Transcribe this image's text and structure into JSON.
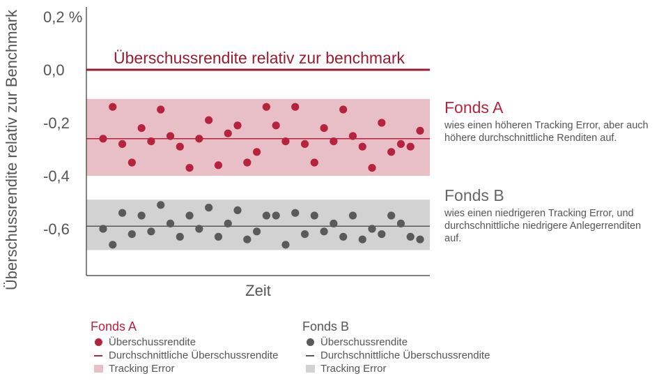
{
  "colors": {
    "fonds_a": "#b5233f",
    "fonds_a_band": "#e8bec7",
    "fonds_b": "#5a5a5a",
    "fonds_b_band": "#d2d2d2",
    "benchmark": "#9b1b30",
    "axis": "#333333"
  },
  "chart_data": {
    "type": "scatter",
    "ylabel": "Überschussrendite relativ zur Benchmark",
    "xlabel": "Zeit",
    "ylim": [
      -0.76,
      0.24
    ],
    "yticks": [
      {
        "value": 0.2,
        "label": "0,2 %"
      },
      {
        "value": 0.0,
        "label": "0,0"
      },
      {
        "value": -0.2,
        "label": "-0,2"
      },
      {
        "value": -0.4,
        "label": "-0,4"
      },
      {
        "value": -0.6,
        "label": "-0,6"
      }
    ],
    "x": [
      1,
      2,
      3,
      4,
      5,
      6,
      7,
      8,
      9,
      10,
      11,
      12,
      13,
      14,
      15,
      16,
      17,
      18,
      19,
      20,
      21,
      22,
      23,
      24,
      25,
      26,
      27,
      28,
      29,
      30,
      31,
      32,
      33,
      34
    ],
    "benchmark": {
      "value": 0.0,
      "label": "Überschussrendite relativ zur benchmark"
    },
    "series": [
      {
        "name": "Fonds A",
        "mean": -0.26,
        "band": [
          -0.4,
          -0.11
        ],
        "values": [
          -0.26,
          -0.14,
          -0.28,
          -0.35,
          -0.22,
          -0.27,
          -0.15,
          -0.25,
          -0.29,
          -0.37,
          -0.26,
          -0.19,
          -0.36,
          -0.24,
          -0.21,
          -0.35,
          -0.31,
          -0.14,
          -0.21,
          -0.27,
          -0.14,
          -0.28,
          -0.35,
          -0.22,
          -0.27,
          -0.15,
          -0.25,
          -0.29,
          -0.37,
          -0.2,
          -0.31,
          -0.28,
          -0.29,
          -0.23
        ]
      },
      {
        "name": "Fonds B",
        "mean": -0.59,
        "band": [
          -0.49,
          -0.68
        ],
        "values": [
          -0.6,
          -0.66,
          -0.54,
          -0.62,
          -0.55,
          -0.61,
          -0.51,
          -0.58,
          -0.63,
          -0.55,
          -0.6,
          -0.52,
          -0.63,
          -0.58,
          -0.53,
          -0.64,
          -0.61,
          -0.55,
          -0.55,
          -0.66,
          -0.54,
          -0.62,
          -0.55,
          -0.61,
          -0.58,
          -0.63,
          -0.55,
          -0.64,
          -0.6,
          -0.62,
          -0.55,
          -0.58,
          -0.63,
          -0.64
        ]
      }
    ]
  },
  "annotations": {
    "fonds_a": {
      "title": "Fonds A",
      "text": "wies einen höheren Tracking Error, aber auch höhere durchschnittliche Renditen auf."
    },
    "fonds_b": {
      "title": "Fonds B",
      "text": "wies einen niedrigeren Tracking Error, und durchschnittliche niedrigere Anlegerrenditen auf."
    }
  },
  "legend": {
    "fonds_a": {
      "title": "Fonds A",
      "items": [
        "Überschussrendite",
        "Durchschnittliche Überschussrendite",
        "Tracking Error"
      ]
    },
    "fonds_b": {
      "title": "Fonds B",
      "items": [
        "Überschussrendite",
        "Durchschnittliche Überschussrendite",
        "Tracking Error"
      ]
    }
  }
}
